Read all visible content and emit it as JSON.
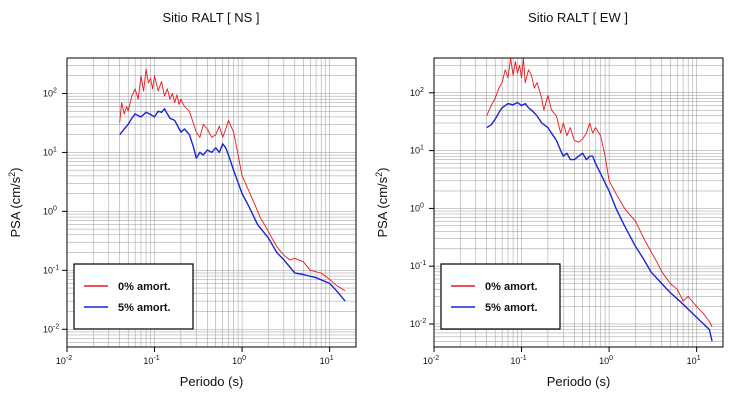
{
  "chart_data": [
    {
      "type": "line",
      "title": "Sitio RALT [ NS ]",
      "xlabel": "Periodo (s)",
      "ylabel": "PSA (cm/s",
      "ylabel_sup": "2",
      "ylabel_close": ")",
      "x_scale": "log",
      "y_scale": "log",
      "xlim": [
        0.01,
        20
      ],
      "ylim": [
        0.005,
        400
      ],
      "grid": true,
      "legend": "bottom-left",
      "x_ticks": [
        {
          "base": "10",
          "exp": "-2",
          "value": 0.01
        },
        {
          "base": "10",
          "exp": "-1",
          "value": 0.1
        },
        {
          "base": "10",
          "exp": "0",
          "value": 1
        },
        {
          "base": "10",
          "exp": "1",
          "value": 10
        }
      ],
      "y_ticks": [
        {
          "base": "10",
          "exp": "-2",
          "value": 0.01
        },
        {
          "base": "10",
          "exp": "-1",
          "value": 0.1
        },
        {
          "base": "10",
          "exp": "0",
          "value": 1
        },
        {
          "base": "10",
          "exp": "1",
          "value": 10
        },
        {
          "base": "10",
          "exp": "2",
          "value": 100
        }
      ],
      "series": [
        {
          "name": "0% amort.",
          "color": "#e8191e",
          "x": [
            0.04,
            0.042,
            0.045,
            0.048,
            0.05,
            0.055,
            0.06,
            0.065,
            0.07,
            0.075,
            0.08,
            0.085,
            0.09,
            0.095,
            0.1,
            0.11,
            0.12,
            0.13,
            0.14,
            0.15,
            0.16,
            0.17,
            0.18,
            0.19,
            0.2,
            0.22,
            0.25,
            0.28,
            0.3,
            0.33,
            0.36,
            0.4,
            0.45,
            0.5,
            0.55,
            0.6,
            0.65,
            0.7,
            0.8,
            0.9,
            1.0,
            1.2,
            1.4,
            1.6,
            1.8,
            2.0,
            2.5,
            3.0,
            3.5,
            4.0,
            5.0,
            6.0,
            8.0,
            10.0,
            12.0,
            15.0
          ],
          "y": [
            32,
            70,
            45,
            60,
            50,
            90,
            120,
            80,
            200,
            110,
            260,
            150,
            180,
            120,
            200,
            110,
            160,
            90,
            120,
            80,
            100,
            70,
            95,
            65,
            80,
            60,
            50,
            30,
            22,
            18,
            30,
            25,
            18,
            20,
            28,
            18,
            25,
            35,
            22,
            9,
            4,
            2.2,
            1.3,
            0.8,
            0.6,
            0.45,
            0.25,
            0.18,
            0.15,
            0.16,
            0.14,
            0.1,
            0.09,
            0.07,
            0.055,
            0.045
          ]
        },
        {
          "name": "5% amort.",
          "color": "#1a24d6",
          "x": [
            0.04,
            0.045,
            0.05,
            0.055,
            0.06,
            0.065,
            0.07,
            0.08,
            0.09,
            0.1,
            0.11,
            0.12,
            0.13,
            0.14,
            0.15,
            0.17,
            0.2,
            0.22,
            0.25,
            0.28,
            0.3,
            0.33,
            0.36,
            0.4,
            0.45,
            0.5,
            0.55,
            0.6,
            0.65,
            0.7,
            0.8,
            1.0,
            1.2,
            1.5,
            2.0,
            2.5,
            3.0,
            4.0,
            5.0,
            7.0,
            10.0,
            12.0,
            15.0
          ],
          "y": [
            20,
            25,
            30,
            38,
            45,
            42,
            40,
            48,
            44,
            40,
            50,
            48,
            55,
            45,
            38,
            35,
            22,
            25,
            20,
            12,
            8,
            10,
            9,
            11,
            10,
            12,
            10,
            14,
            12,
            9,
            5,
            2,
            1.2,
            0.6,
            0.35,
            0.2,
            0.15,
            0.09,
            0.085,
            0.075,
            0.06,
            0.045,
            0.03
          ]
        }
      ]
    },
    {
      "type": "line",
      "title": "Sitio RALT [ EW ]",
      "xlabel": "Periodo (s)",
      "ylabel": "PSA (cm/s",
      "ylabel_sup": "2",
      "ylabel_close": ")",
      "x_scale": "log",
      "y_scale": "log",
      "xlim": [
        0.01,
        20
      ],
      "ylim": [
        0.004,
        400
      ],
      "grid": true,
      "legend": "bottom-left",
      "x_ticks": [
        {
          "base": "10",
          "exp": "-2",
          "value": 0.01
        },
        {
          "base": "10",
          "exp": "-1",
          "value": 0.1
        },
        {
          "base": "10",
          "exp": "0",
          "value": 1
        },
        {
          "base": "10",
          "exp": "1",
          "value": 10
        }
      ],
      "y_ticks": [
        {
          "base": "10",
          "exp": "-2",
          "value": 0.01
        },
        {
          "base": "10",
          "exp": "-1",
          "value": 0.1
        },
        {
          "base": "10",
          "exp": "0",
          "value": 1
        },
        {
          "base": "10",
          "exp": "1",
          "value": 10
        },
        {
          "base": "10",
          "exp": "2",
          "value": 100
        }
      ],
      "series": [
        {
          "name": "0% amort.",
          "color": "#e8191e",
          "x": [
            0.04,
            0.045,
            0.05,
            0.055,
            0.06,
            0.065,
            0.07,
            0.075,
            0.08,
            0.085,
            0.09,
            0.095,
            0.1,
            0.105,
            0.11,
            0.12,
            0.13,
            0.14,
            0.15,
            0.16,
            0.17,
            0.18,
            0.2,
            0.22,
            0.25,
            0.28,
            0.3,
            0.33,
            0.36,
            0.4,
            0.45,
            0.5,
            0.55,
            0.6,
            0.65,
            0.7,
            0.8,
            0.9,
            1.0,
            1.2,
            1.5,
            2.0,
            2.5,
            3.0,
            3.5,
            4.0,
            5.0,
            6.0,
            7.0,
            8.0,
            10.0,
            12.0,
            14.0,
            15.0
          ],
          "y": [
            40,
            60,
            80,
            120,
            150,
            250,
            180,
            400,
            200,
            350,
            220,
            300,
            180,
            400,
            150,
            250,
            200,
            120,
            150,
            110,
            80,
            50,
            90,
            50,
            40,
            20,
            30,
            18,
            25,
            15,
            14,
            16,
            20,
            30,
            20,
            25,
            18,
            8,
            3,
            1.8,
            1.0,
            0.6,
            0.3,
            0.18,
            0.12,
            0.08,
            0.05,
            0.04,
            0.025,
            0.03,
            0.02,
            0.015,
            0.011,
            0.009
          ]
        },
        {
          "name": "5% amort.",
          "color": "#1a24d6",
          "x": [
            0.04,
            0.045,
            0.05,
            0.055,
            0.06,
            0.065,
            0.07,
            0.08,
            0.09,
            0.1,
            0.11,
            0.12,
            0.13,
            0.14,
            0.15,
            0.17,
            0.2,
            0.22,
            0.25,
            0.28,
            0.3,
            0.33,
            0.36,
            0.4,
            0.45,
            0.5,
            0.55,
            0.6,
            0.65,
            0.7,
            0.8,
            1.0,
            1.2,
            1.5,
            2.0,
            2.5,
            3.0,
            4.0,
            5.0,
            7.0,
            10.0,
            12.0,
            14.0,
            15.0
          ],
          "y": [
            25,
            28,
            35,
            45,
            55,
            60,
            65,
            62,
            68,
            60,
            65,
            55,
            50,
            45,
            40,
            30,
            25,
            20,
            15,
            10,
            8,
            9,
            7,
            7,
            8,
            9,
            7,
            8,
            8,
            6,
            4,
            2,
            1.0,
            0.5,
            0.22,
            0.13,
            0.08,
            0.05,
            0.035,
            0.022,
            0.013,
            0.01,
            0.008,
            0.005
          ]
        }
      ]
    }
  ]
}
